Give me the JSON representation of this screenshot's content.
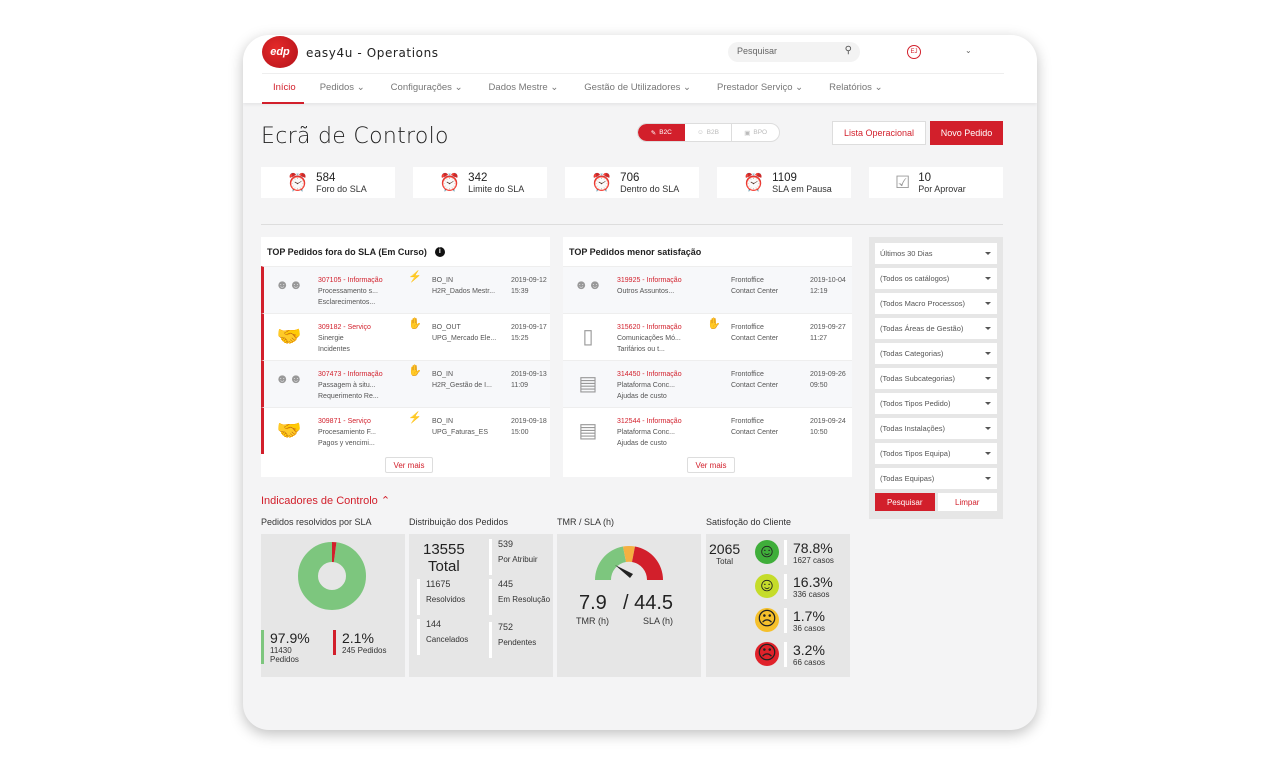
{
  "app": {
    "logo_text": "edp",
    "title": "easy4u - Operations",
    "search_placeholder": "Pesquisar",
    "avatar": "EJ"
  },
  "nav": [
    "Início",
    "Pedidos",
    "Configurações",
    "Dados Mestre",
    "Gestão de Utilizadores",
    "Prestador Serviço",
    "Relatórios"
  ],
  "page_title": "Ecrã de Controlo",
  "segments": [
    {
      "label": "B2C",
      "active": true
    },
    {
      "label": "B2B",
      "active": false
    },
    {
      "label": "BPO",
      "active": false
    }
  ],
  "buttons": {
    "lista": "Lista Operacional",
    "novo": "Novo Pedido"
  },
  "kpis": [
    {
      "value": "584",
      "label": "Foro do SLA",
      "icon": "alarm-x-icon",
      "color": "#d21f2b"
    },
    {
      "value": "342",
      "label": "Limite do SLA",
      "icon": "alarm-warning-icon",
      "color": "#f5a623"
    },
    {
      "value": "706",
      "label": "Dentro do SLA",
      "icon": "alarm-check-icon",
      "color": "#5cb85c"
    },
    {
      "value": "1109",
      "label": "SLA em Pausa",
      "icon": "alarm-pause-icon",
      "color": "#999999"
    },
    {
      "value": "10",
      "label": "Por Aprovar",
      "icon": "calendar-check-icon",
      "color": "#999999"
    }
  ],
  "top_sla": {
    "title": "TOP Pedidos fora do SLA (Em Curso)",
    "more": "Ver mais",
    "rows": [
      {
        "icon": "people",
        "id": "307105 - Informação",
        "l1": "Processamento s...",
        "l2": "Esclarecimentos...",
        "mark": "⚡",
        "c2a": "BO_IN",
        "c2b": "H2R_Dados Mestr...",
        "date": "2019-09-12",
        "time": "15:39"
      },
      {
        "icon": "handshake",
        "id": "309182 - Serviço",
        "l1": "Sinergie",
        "l2": "Incidentes",
        "mark": "✋",
        "c2a": "BO_OUT",
        "c2b": "UPG_Mercado Ele...",
        "date": "2019-09-17",
        "time": "15:25"
      },
      {
        "icon": "people",
        "id": "307473 - Informação",
        "l1": "Passagem à situ...",
        "l2": "Requerimento Re...",
        "mark": "✋",
        "c2a": "BO_IN",
        "c2b": "H2R_Gestão de I...",
        "date": "2019-09-13",
        "time": "11:09"
      },
      {
        "icon": "handshake",
        "id": "309871 - Serviço",
        "l1": "Procesamiento F...",
        "l2": "Pagos y vencimi...",
        "mark": "⚡",
        "c2a": "BO_IN",
        "c2b": "UPG_Faturas_ES",
        "date": "2019-09-18",
        "time": "15:00"
      }
    ]
  },
  "top_sat": {
    "title": "TOP Pedidos menor satisfação",
    "more": "Ver mais",
    "rows": [
      {
        "icon": "people",
        "id": "319925 - Informação",
        "l1": "Outros Assuntos...",
        "l2": "",
        "mark": "",
        "c2a": "Frontoffice",
        "c2b": "Contact Center",
        "date": "2019-10-04",
        "time": "12:19"
      },
      {
        "icon": "phone",
        "id": "315620 - Informação",
        "l1": "Comunicações Mó...",
        "l2": "Tarifários ou t...",
        "mark": "✋",
        "c2a": "Frontoffice",
        "c2b": "Contact Center",
        "date": "2019-09-27",
        "time": "11:27"
      },
      {
        "icon": "luggage",
        "id": "314450 - Informação",
        "l1": "Plataforma Conc...",
        "l2": "Ajudas de custo",
        "mark": "",
        "c2a": "Frontoffice",
        "c2b": "Contact Center",
        "date": "2019-09-26",
        "time": "09:50"
      },
      {
        "icon": "luggage",
        "id": "312544 - Informação",
        "l1": "Plataforma Conc...",
        "l2": "Ajudas de custo",
        "mark": "",
        "c2a": "Frontoffice",
        "c2b": "Contact Center",
        "date": "2019-09-24",
        "time": "10:50"
      }
    ]
  },
  "filters": {
    "selects": [
      "Últimos 30 Dias",
      "(Todos os catálogos)",
      "(Todos Macro Processos)",
      "(Todas Áreas de Gestão)",
      "(Todas Categorias)",
      "(Todas Subcategorias)",
      "(Todos Tipos Pedido)",
      "(Todas Instalações)",
      "(Todos Tipos Equipa)",
      "(Todas Equipas)"
    ],
    "search": "Pesquisar",
    "clear": "Limpar"
  },
  "indicators": {
    "title": "Indicadores de Controlo",
    "sla": {
      "title": "Pedidos resolvidos por SLA",
      "in_pct": "97.9%",
      "in_count": "11430",
      "in_label": "Pedidos",
      "out_pct": "2.1%",
      "out_label": "245 Pedidos",
      "in_fraction": 0.979,
      "colors": {
        "in": "#7dc67e",
        "out": "#d21f2b"
      }
    },
    "dist": {
      "title": "Distribuição dos Pedidos",
      "total": "13555",
      "total_label": "Total",
      "items": [
        {
          "v": "539",
          "l": "Por Atribuir"
        },
        {
          "v": "11675",
          "l": "Resolvidos"
        },
        {
          "v": "445",
          "l": "Em Resolução"
        },
        {
          "v": "144",
          "l": "Cancelados"
        },
        {
          "v": "752",
          "l": "Pendentes"
        }
      ]
    },
    "tmr": {
      "title": "TMR / SLA (h)",
      "tmr": "7.9",
      "sla": "/ 44.5",
      "tmr_label": "TMR (h)",
      "sla_label": "SLA (h)",
      "tmr_value": 7.9,
      "sla_value": 44.5
    },
    "sat": {
      "title": "Satisfoção do Cliente",
      "total": "2065",
      "total_label": "Total",
      "items": [
        {
          "pct": "78.8%",
          "cases": "1627 casos",
          "color": "#3fae3a",
          "face": "happy"
        },
        {
          "pct": "16.3%",
          "cases": "336 casos",
          "color": "#c5dc2a",
          "face": "smile"
        },
        {
          "pct": "1.7%",
          "cases": "36 casos",
          "color": "#f5c02b",
          "face": "sad"
        },
        {
          "pct": "3.2%",
          "cases": "66 casos",
          "color": "#e0222a",
          "face": "angry"
        }
      ]
    }
  }
}
